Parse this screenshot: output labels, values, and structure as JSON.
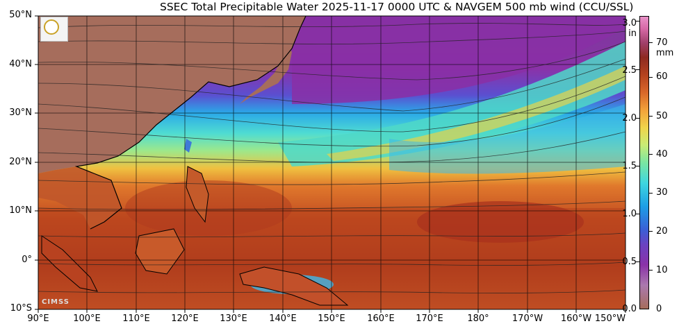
{
  "title": "SSEC Total Precipitable Water  2025-11-17 0000 UTC & NAVGEM 500 mb wind (CCU/SSL)",
  "map": {
    "lat_labels": [
      "50°N",
      "40°N",
      "30°N",
      "20°N",
      "10°N",
      "0°",
      "10°S"
    ],
    "lon_labels": [
      "90°E",
      "100°E",
      "110°E",
      "120°E",
      "130°E",
      "140°E",
      "150°E",
      "160°E",
      "170°E",
      "180°",
      "170°W",
      "160°W",
      "150°W"
    ]
  },
  "colorbar": {
    "inches": [
      "3.0",
      "2.5",
      "2.0",
      "1.5",
      "1.0",
      "0.5",
      "0.0"
    ],
    "inch_unit": "in",
    "mm": [
      "70",
      "60",
      "50",
      "40",
      "30",
      "20",
      "10",
      "0"
    ],
    "mm_unit": "mm"
  },
  "logos": {
    "cimss": "CIMSS"
  },
  "colors": {
    "land": "#a66d5c",
    "dry": "#8a32a8",
    "moist": "#b5431f",
    "mid": "#3fd6e0"
  }
}
